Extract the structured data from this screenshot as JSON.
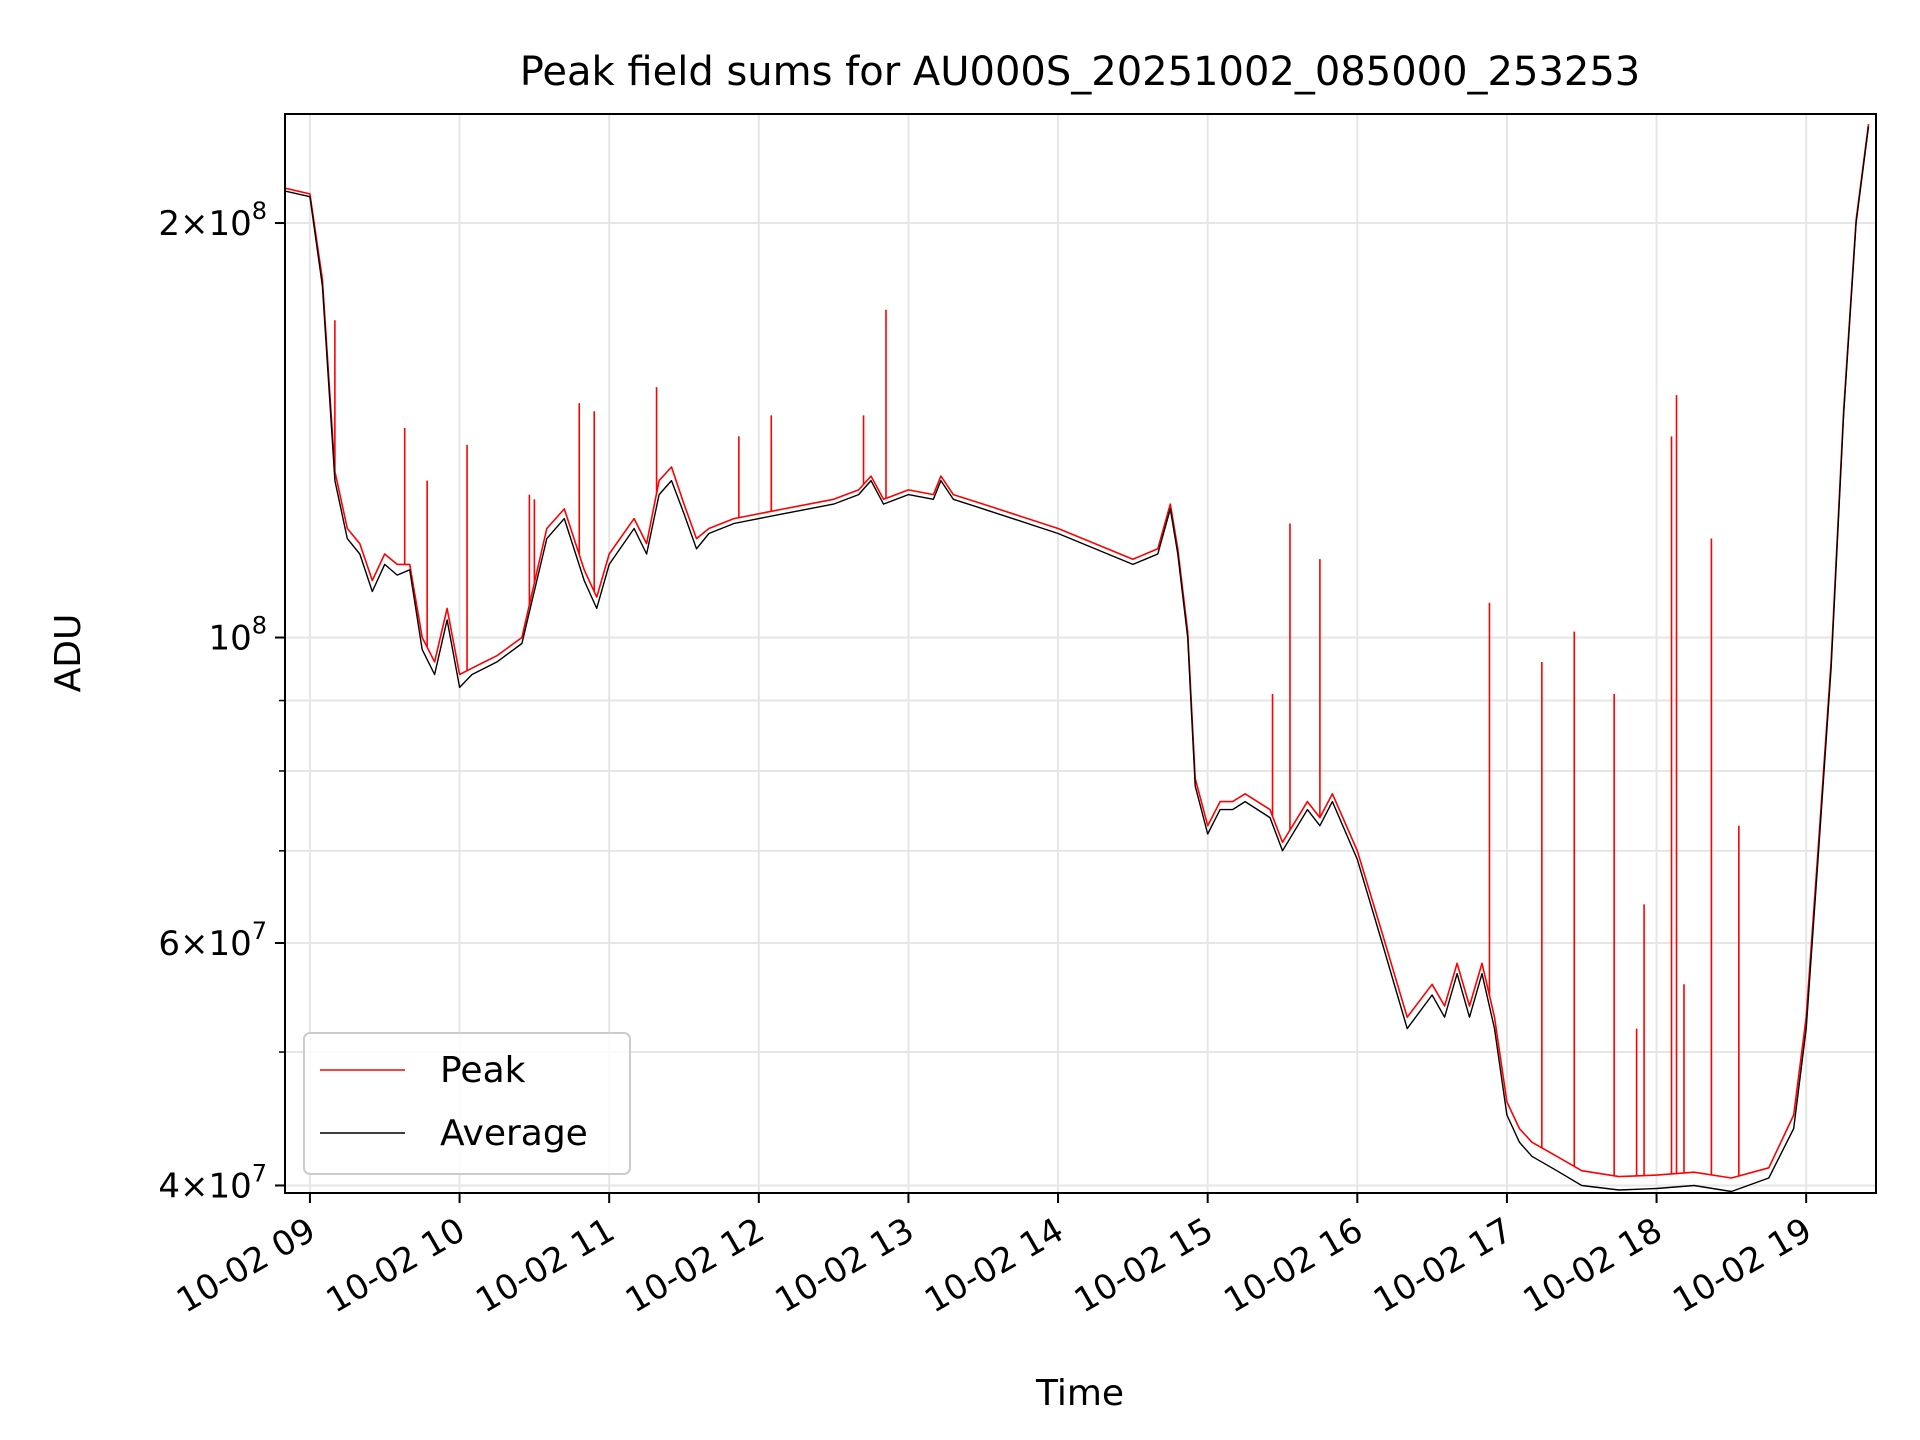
{
  "chart_data": {
    "type": "line",
    "title": "Peak field sums for AU000S_20251002_085000_253253",
    "xlabel": "Time",
    "ylabel": "ADU",
    "yscale": "log",
    "xlim": [
      "2025-10-02 08:50",
      "2025-10-02 19:28"
    ],
    "ylim": [
      39500000,
      240000000
    ],
    "grid": true,
    "legend_position": "lower-left",
    "colors": {
      "peak": "#ff0000",
      "average": "#000000",
      "grid": "#e6e6e6"
    },
    "x_ticks": [
      "10-02 09",
      "10-02 10",
      "10-02 11",
      "10-02 12",
      "10-02 13",
      "10-02 14",
      "10-02 15",
      "10-02 16",
      "10-02 17",
      "10-02 18",
      "10-02 19"
    ],
    "y_ticks": [
      {
        "value": 40000000,
        "label_base": "4×10",
        "label_exp": "7"
      },
      {
        "value": 60000000,
        "label_base": "6×10",
        "label_exp": "7"
      },
      {
        "value": 100000000,
        "label_base": "10",
        "label_exp": "8"
      },
      {
        "value": 200000000,
        "label_base": "2×10",
        "label_exp": "8"
      }
    ],
    "y_minor_ticks": [
      50000000,
      70000000,
      80000000,
      90000000
    ],
    "series": [
      {
        "name": "Average",
        "x": [
          "2025-10-02 08:50",
          "2025-10-02 09:00",
          "2025-10-02 09:05",
          "2025-10-02 09:10",
          "2025-10-02 09:15",
          "2025-10-02 09:20",
          "2025-10-02 09:25",
          "2025-10-02 09:30",
          "2025-10-02 09:35",
          "2025-10-02 09:40",
          "2025-10-02 09:45",
          "2025-10-02 09:50",
          "2025-10-02 09:55",
          "2025-10-02 10:00",
          "2025-10-02 10:05",
          "2025-10-02 10:10",
          "2025-10-02 10:15",
          "2025-10-02 10:25",
          "2025-10-02 10:35",
          "2025-10-02 10:42",
          "2025-10-02 10:50",
          "2025-10-02 10:55",
          "2025-10-02 11:00",
          "2025-10-02 11:10",
          "2025-10-02 11:15",
          "2025-10-02 11:20",
          "2025-10-02 11:25",
          "2025-10-02 11:30",
          "2025-10-02 11:35",
          "2025-10-02 11:40",
          "2025-10-02 11:50",
          "2025-10-02 12:10",
          "2025-10-02 12:30",
          "2025-10-02 12:40",
          "2025-10-02 12:45",
          "2025-10-02 12:50",
          "2025-10-02 13:00",
          "2025-10-02 13:10",
          "2025-10-02 13:13",
          "2025-10-02 13:18",
          "2025-10-02 13:30",
          "2025-10-02 14:00",
          "2025-10-02 14:30",
          "2025-10-02 14:40",
          "2025-10-02 14:45",
          "2025-10-02 14:48",
          "2025-10-02 14:52",
          "2025-10-02 14:55",
          "2025-10-02 15:00",
          "2025-10-02 15:05",
          "2025-10-02 15:10",
          "2025-10-02 15:15",
          "2025-10-02 15:25",
          "2025-10-02 15:30",
          "2025-10-02 15:40",
          "2025-10-02 15:45",
          "2025-10-02 15:50",
          "2025-10-02 16:00",
          "2025-10-02 16:10",
          "2025-10-02 16:20",
          "2025-10-02 16:30",
          "2025-10-02 16:35",
          "2025-10-02 16:40",
          "2025-10-02 16:45",
          "2025-10-02 16:50",
          "2025-10-02 16:55",
          "2025-10-02 17:00",
          "2025-10-02 17:05",
          "2025-10-02 17:10",
          "2025-10-02 17:20",
          "2025-10-02 17:30",
          "2025-10-02 17:45",
          "2025-10-02 18:00",
          "2025-10-02 18:15",
          "2025-10-02 18:30",
          "2025-10-02 18:45",
          "2025-10-02 18:55",
          "2025-10-02 19:00",
          "2025-10-02 19:05",
          "2025-10-02 19:10",
          "2025-10-02 19:15",
          "2025-10-02 19:20",
          "2025-10-02 19:25"
        ],
        "values": [
          211000000,
          209000000,
          180000000,
          130000000,
          118000000,
          115000000,
          108000000,
          113000000,
          111000000,
          112000000,
          98000000,
          94000000,
          103000000,
          92000000,
          94000000,
          95000000,
          96000000,
          99000000,
          118000000,
          122000000,
          110000000,
          105000000,
          113000000,
          120000000,
          115000000,
          127000000,
          130000000,
          123000000,
          116000000,
          119000000,
          121000000,
          123000000,
          125000000,
          127000000,
          130000000,
          125000000,
          127000000,
          126000000,
          130000000,
          126000000,
          124000000,
          119000000,
          113000000,
          115000000,
          124000000,
          115000000,
          100000000,
          78000000,
          72000000,
          75000000,
          75000000,
          76000000,
          74000000,
          70000000,
          75000000,
          73000000,
          76000000,
          69000000,
          60000000,
          52000000,
          55000000,
          53000000,
          57000000,
          53000000,
          57000000,
          52000000,
          45000000,
          43000000,
          42000000,
          41000000,
          40000000,
          39700000,
          39800000,
          40000000,
          39600000,
          40500000,
          44000000,
          52000000,
          70000000,
          95000000,
          145000000,
          200000000,
          235000000
        ]
      },
      {
        "name": "Peak",
        "x": [
          "2025-10-02 08:50",
          "2025-10-02 09:00",
          "2025-10-02 09:05",
          "2025-10-02 09:10",
          "2025-10-02 09:15",
          "2025-10-02 09:20",
          "2025-10-02 09:25",
          "2025-10-02 09:30",
          "2025-10-02 09:35",
          "2025-10-02 09:40",
          "2025-10-02 09:45",
          "2025-10-02 09:50",
          "2025-10-02 09:55",
          "2025-10-02 10:00",
          "2025-10-02 10:05",
          "2025-10-02 10:10",
          "2025-10-02 10:15",
          "2025-10-02 10:25",
          "2025-10-02 10:35",
          "2025-10-02 10:42",
          "2025-10-02 10:50",
          "2025-10-02 10:55",
          "2025-10-02 11:00",
          "2025-10-02 11:10",
          "2025-10-02 11:15",
          "2025-10-02 11:20",
          "2025-10-02 11:25",
          "2025-10-02 11:30",
          "2025-10-02 11:35",
          "2025-10-02 11:40",
          "2025-10-02 11:50",
          "2025-10-02 12:10",
          "2025-10-02 12:30",
          "2025-10-02 12:40",
          "2025-10-02 12:45",
          "2025-10-02 12:50",
          "2025-10-02 13:00",
          "2025-10-02 13:10",
          "2025-10-02 13:13",
          "2025-10-02 13:18",
          "2025-10-02 13:30",
          "2025-10-02 14:00",
          "2025-10-02 14:30",
          "2025-10-02 14:40",
          "2025-10-02 14:45",
          "2025-10-02 14:48",
          "2025-10-02 14:52",
          "2025-10-02 14:55",
          "2025-10-02 15:00",
          "2025-10-02 15:05",
          "2025-10-02 15:10",
          "2025-10-02 15:15",
          "2025-10-02 15:25",
          "2025-10-02 15:30",
          "2025-10-02 15:40",
          "2025-10-02 15:45",
          "2025-10-02 15:50",
          "2025-10-02 16:00",
          "2025-10-02 16:10",
          "2025-10-02 16:20",
          "2025-10-02 16:30",
          "2025-10-02 16:35",
          "2025-10-02 16:40",
          "2025-10-02 16:45",
          "2025-10-02 16:50",
          "2025-10-02 16:55",
          "2025-10-02 17:00",
          "2025-10-02 17:05",
          "2025-10-02 17:10",
          "2025-10-02 17:20",
          "2025-10-02 17:30",
          "2025-10-02 17:45",
          "2025-10-02 18:00",
          "2025-10-02 18:15",
          "2025-10-02 18:30",
          "2025-10-02 18:45",
          "2025-10-02 18:55",
          "2025-10-02 19:00",
          "2025-10-02 19:05",
          "2025-10-02 19:10",
          "2025-10-02 19:15",
          "2025-10-02 19:20",
          "2025-10-02 19:25"
        ],
        "values": [
          212000000,
          210000000,
          182000000,
          132000000,
          120000000,
          117000000,
          110000000,
          115000000,
          113000000,
          113000000,
          100000000,
          96000000,
          105000000,
          94000000,
          95000000,
          96000000,
          97000000,
          100000000,
          120000000,
          124000000,
          112000000,
          107000000,
          115000000,
          122000000,
          117000000,
          130000000,
          133000000,
          125000000,
          118000000,
          120000000,
          122000000,
          124000000,
          126000000,
          128000000,
          131000000,
          126000000,
          128000000,
          127000000,
          131000000,
          127000000,
          125000000,
          120000000,
          114000000,
          116000000,
          125000000,
          116000000,
          101000000,
          79000000,
          73000000,
          76000000,
          76000000,
          77000000,
          75000000,
          71000000,
          76000000,
          74000000,
          77000000,
          70000000,
          61000000,
          53000000,
          56000000,
          54000000,
          58000000,
          54000000,
          58000000,
          53000000,
          46000000,
          44000000,
          43000000,
          42000000,
          41000000,
          40600000,
          40700000,
          40900000,
          40500000,
          41200000,
          45000000,
          53000000,
          71000000,
          96000000,
          146000000,
          201000000,
          236000000
        ],
        "spikes": [
          {
            "x": "2025-10-02 09:10",
            "value": 170000000
          },
          {
            "x": "2025-10-02 09:38",
            "value": 142000000
          },
          {
            "x": "2025-10-02 09:47",
            "value": 130000000
          },
          {
            "x": "2025-10-02 10:03",
            "value": 138000000
          },
          {
            "x": "2025-10-02 10:28",
            "value": 127000000
          },
          {
            "x": "2025-10-02 10:30",
            "value": 126000000
          },
          {
            "x": "2025-10-02 10:48",
            "value": 148000000
          },
          {
            "x": "2025-10-02 10:54",
            "value": 146000000
          },
          {
            "x": "2025-10-02 11:19",
            "value": 152000000
          },
          {
            "x": "2025-10-02 11:52",
            "value": 140000000
          },
          {
            "x": "2025-10-02 12:05",
            "value": 139000000
          },
          {
            "x": "2025-10-02 12:05",
            "value": 145000000
          },
          {
            "x": "2025-10-02 12:42",
            "value": 145000000
          },
          {
            "x": "2025-10-02 12:51",
            "value": 173000000
          },
          {
            "x": "2025-10-02 15:26",
            "value": 91000000
          },
          {
            "x": "2025-10-02 15:33",
            "value": 121000000
          },
          {
            "x": "2025-10-02 15:45",
            "value": 114000000
          },
          {
            "x": "2025-10-02 16:53",
            "value": 106000000
          },
          {
            "x": "2025-10-02 17:14",
            "value": 96000000
          },
          {
            "x": "2025-10-02 17:27",
            "value": 101000000
          },
          {
            "x": "2025-10-02 17:43",
            "value": 91000000
          },
          {
            "x": "2025-10-02 17:52",
            "value": 52000000
          },
          {
            "x": "2025-10-02 17:55",
            "value": 64000000
          },
          {
            "x": "2025-10-02 18:06",
            "value": 140000000
          },
          {
            "x": "2025-10-02 18:08",
            "value": 150000000
          },
          {
            "x": "2025-10-02 18:11",
            "value": 56000000
          },
          {
            "x": "2025-10-02 18:22",
            "value": 118000000
          },
          {
            "x": "2025-10-02 18:33",
            "value": 73000000
          }
        ]
      }
    ]
  }
}
